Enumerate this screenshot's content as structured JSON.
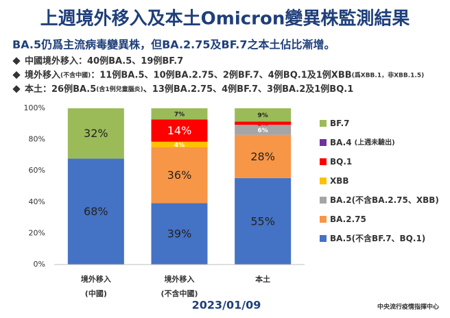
{
  "header": {
    "title": "上週境外移入及本土Omicron變異株監測結果",
    "subtitle": "BA.5仍爲主流病毒變異株，但BA.2.75及BF.7之本土佔比漸增。",
    "bullets": [
      [
        "中國境外移入：40例BA.5、19例BF.7"
      ],
      [
        "境外移入",
        "(不含中國)",
        "：11例BA.5、10例BA.2.75、2例BF.7、4例BQ.1及1例XBB",
        "(爲XBB.1，非XBB.1.5)"
      ],
      [
        "本土：26例BA.5",
        "(含1例兒童腦炎)",
        "、13例BA.2.75、4例BF.7、3例BA.2及1例BQ.1"
      ]
    ]
  },
  "chart_data": {
    "type": "stacked_bar",
    "categories": [
      [
        "境外移入",
        "(中國)"
      ],
      [
        "境外移入",
        "(不含中國)"
      ],
      [
        "本土"
      ]
    ],
    "series": [
      {
        "name": "BA.5(不含BF.7、BQ.1)",
        "color": "#4472c4",
        "label_color": "#222222",
        "values": [
          67.8,
          39.3,
          55.3
        ],
        "value_labels": [
          "68%",
          "39%",
          "55%"
        ]
      },
      {
        "name": "BA.2.75",
        "color": "#f79646",
        "label_color": "#222222",
        "values": [
          null,
          35.7,
          27.7
        ],
        "value_labels": [
          null,
          "36%",
          "28%"
        ]
      },
      {
        "name": "BA.2(不含BA.2.75、XBB)",
        "color": "#a5a5a5",
        "label_color": "#ffffff",
        "values": [
          null,
          null,
          6.4
        ],
        "value_labels": [
          null,
          null,
          "6%"
        ]
      },
      {
        "name": "XBB",
        "color": "#ffc000",
        "label_color": "#ffffff",
        "values": [
          null,
          3.6,
          null
        ],
        "value_labels": [
          null,
          "4%",
          null
        ]
      },
      {
        "name": "BQ.1",
        "color": "#ff0000",
        "label_color": "#ffffff",
        "values": [
          null,
          14.3,
          2.1
        ],
        "value_labels": [
          null,
          "14%",
          "2%"
        ]
      },
      {
        "name": "BA.4",
        "note": "(上週未驗出)",
        "color": "#7030a0",
        "label_color": "#ffffff",
        "values": [
          null,
          null,
          null
        ],
        "value_labels": [
          null,
          null,
          null
        ]
      },
      {
        "name": "BF.7",
        "color": "#9bbb59",
        "label_color": "#222222",
        "values": [
          32.2,
          7.1,
          8.5
        ],
        "value_labels": [
          "32%",
          "7%",
          "9%"
        ]
      }
    ],
    "ylim": [
      0,
      100
    ],
    "yticks": [
      {
        "value": 0,
        "label": "0%"
      },
      {
        "value": 20,
        "label": "20%"
      },
      {
        "value": 40,
        "label": "40%"
      },
      {
        "value": 60,
        "label": "60%"
      },
      {
        "value": 80,
        "label": "80%"
      },
      {
        "value": 100,
        "label": "100%"
      }
    ],
    "grid": false,
    "legend": "right"
  },
  "footer": {
    "date": "2023/01/09",
    "source": "中央流行疫情指揮中心"
  }
}
